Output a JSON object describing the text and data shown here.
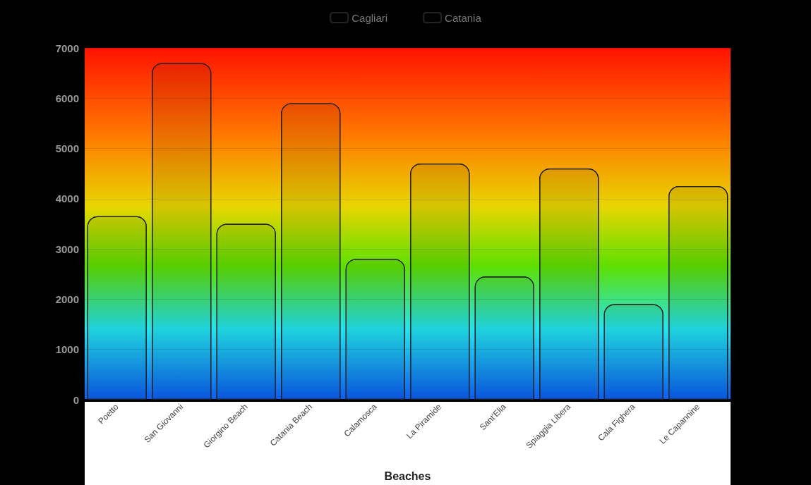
{
  "chart_data": {
    "type": "bar",
    "xlabel": "Beaches",
    "categories": [
      "Poetto",
      "San Giovanni",
      "Giorgino Beach",
      "Catania Beach",
      "Calamosca",
      "La Piramide",
      "Sant'Elia",
      "Spiaggia Libera",
      "Cala Fighera",
      "Le Capannine"
    ],
    "series": [
      {
        "name": "Cagliari",
        "values": [
          3650,
          null,
          3500,
          null,
          2800,
          null,
          2450,
          null,
          1900,
          null
        ]
      },
      {
        "name": "Catania",
        "values": [
          null,
          6700,
          null,
          5900,
          null,
          4700,
          null,
          4600,
          null,
          4250
        ]
      }
    ],
    "ylim": [
      0,
      7000
    ],
    "yticks": [
      0,
      1000,
      2000,
      3000,
      4000,
      5000,
      6000,
      7000
    ],
    "grid": "y",
    "legend": "top"
  }
}
